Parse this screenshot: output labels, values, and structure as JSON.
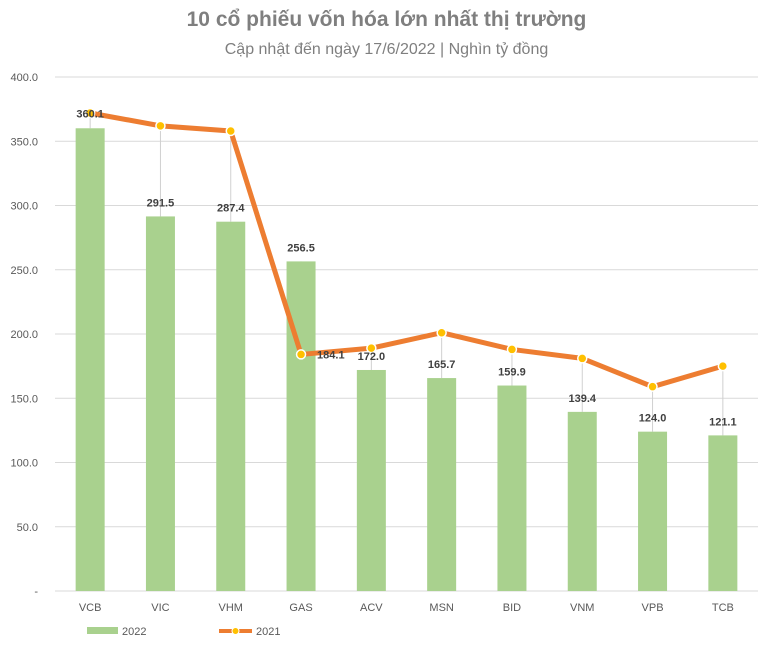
{
  "chart_data": {
    "type": "bar",
    "title": "10 cổ phiếu vốn hóa lớn nhất thị trường",
    "subtitle": "Cập nhật đến ngày 17/6/2022 | Nghìn tỷ đồng",
    "categories": [
      "VCB",
      "VIC",
      "VHM",
      "GAS",
      "ACV",
      "MSN",
      "BID",
      "VNM",
      "VPB",
      "TCB"
    ],
    "ylim": [
      0,
      400
    ],
    "yticks": [
      0,
      50,
      100,
      150,
      200,
      250,
      300,
      350,
      400
    ],
    "ytick_labels": [
      "-",
      "50.0",
      "100.0",
      "150.0",
      "200.0",
      "250.0",
      "300.0",
      "350.0",
      "400.0"
    ],
    "grid": true,
    "legend_position": "bottom-left",
    "series": [
      {
        "name": "2022",
        "type": "bar",
        "color": "#a9d18e",
        "values": [
          360.1,
          291.5,
          287.4,
          256.5,
          172.0,
          165.7,
          159.9,
          139.4,
          124.0,
          121.1
        ],
        "labels": [
          "360.1",
          "291.5",
          "287.4",
          "256.5",
          "172.0",
          "165.7",
          "159.9",
          "139.4",
          "124.0",
          "121.1"
        ]
      },
      {
        "name": "2021",
        "type": "line",
        "color": "#ed7d31",
        "marker_color": "#ffc000",
        "values": [
          372,
          362,
          358,
          184.1,
          189,
          201,
          188,
          181,
          159,
          175
        ]
      }
    ]
  }
}
